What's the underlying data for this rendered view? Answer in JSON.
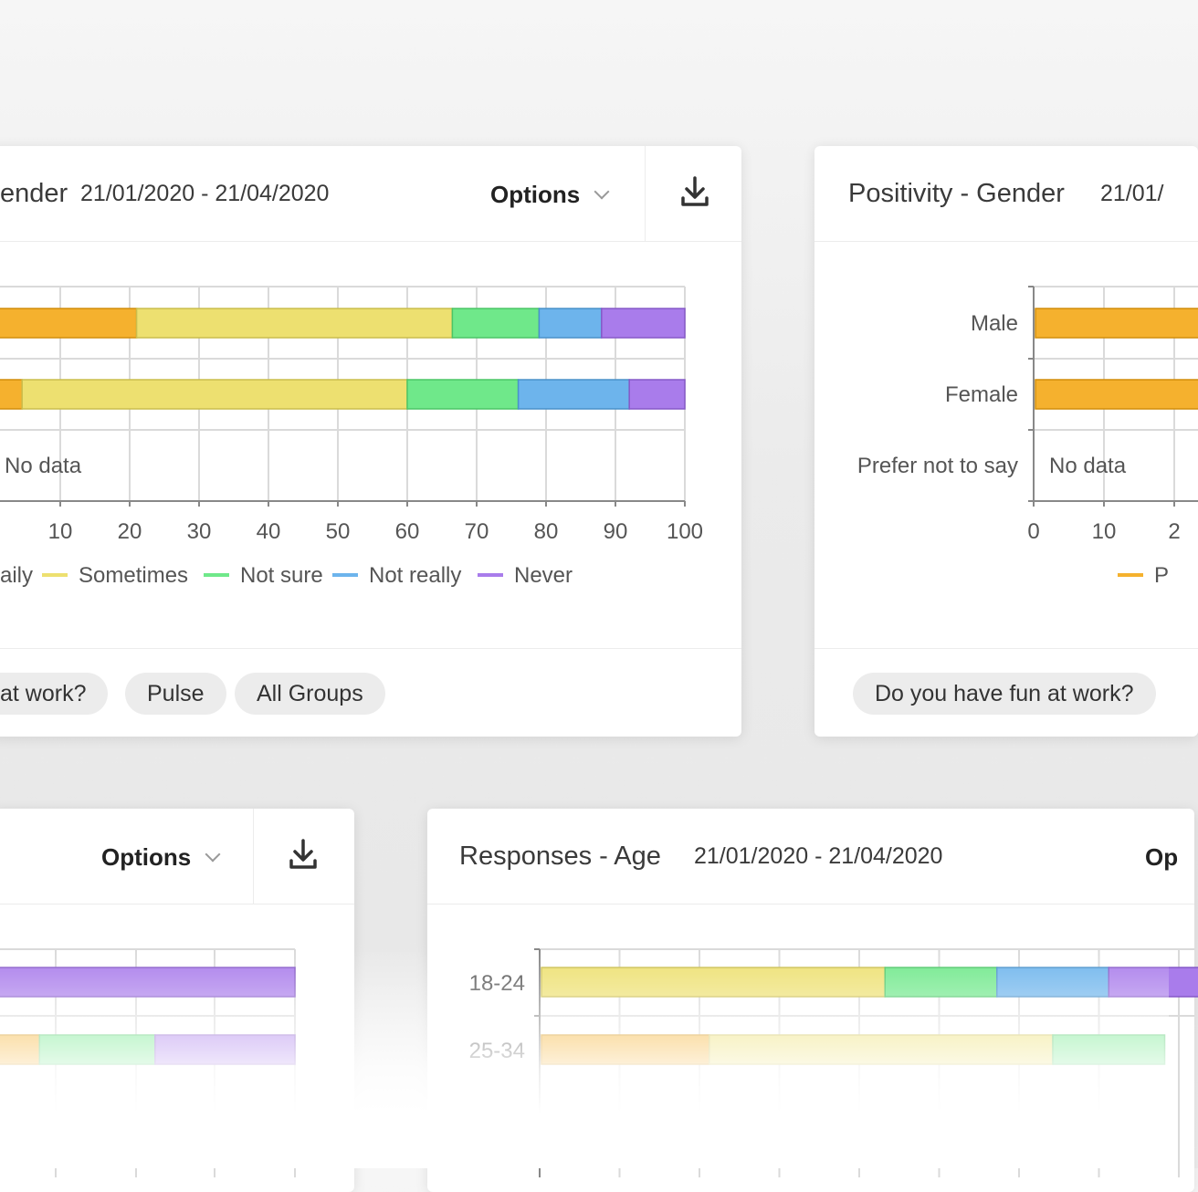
{
  "cards": {
    "gender_responses": {
      "title": "ender",
      "date": "21/01/2020 - 21/04/2020",
      "options_label": "Options",
      "chips": [
        "at work?",
        "Pulse",
        "All Groups"
      ]
    },
    "positivity_gender": {
      "title": "Positivity - Gender",
      "date": "21/01/",
      "chips": [
        "Do you have fun at work?"
      ]
    },
    "bottom_left": {
      "options_label": "Options"
    },
    "responses_age": {
      "title": "Responses - Age",
      "date": "21/01/2020 - 21/04/2020",
      "options_label": "Op"
    }
  },
  "colors": {
    "daily": "#f5b12e",
    "sometimes": "#ede070",
    "not_sure": "#6fe88a",
    "not_really": "#6db4ec",
    "never": "#a97ceb",
    "positive": "#f5b12e"
  },
  "chart_data": [
    {
      "type": "bar",
      "orientation": "horizontal",
      "stacked": true,
      "categories": [
        "",
        "",
        ""
      ],
      "series": [
        {
          "name": "aily",
          "values": [
            21,
            4.5,
            0
          ]
        },
        {
          "name": "Sometimes",
          "values": [
            45.5,
            55.5,
            0
          ]
        },
        {
          "name": "Not sure",
          "values": [
            12.5,
            16,
            0
          ]
        },
        {
          "name": "Not really",
          "values": [
            9,
            16,
            0
          ]
        },
        {
          "name": "Never",
          "values": [
            12,
            8,
            0
          ]
        }
      ],
      "no_data_label": "No data",
      "xlim": [
        0,
        100
      ],
      "x_ticks": [
        "10",
        "20",
        "30",
        "40",
        "50",
        "60",
        "70",
        "80",
        "90",
        "100"
      ],
      "grid": true,
      "legend_position": "bottom"
    },
    {
      "type": "bar",
      "orientation": "horizontal",
      "categories": [
        "Male",
        "Female",
        "Prefer not to say"
      ],
      "series": [
        {
          "name": "P",
          "values": [
            25,
            25,
            null
          ]
        }
      ],
      "no_data_label": "No data",
      "x_ticks": [
        "0",
        "10",
        "2"
      ],
      "grid": true,
      "legend_position": "bottom"
    },
    {
      "type": "bar",
      "orientation": "horizontal",
      "stacked": true,
      "categories": [
        "",
        ""
      ],
      "series": [
        {
          "name": "",
          "values": [
            0,
            16
          ]
        },
        {
          "name": "",
          "values": [
            100,
            0
          ]
        },
        {
          "name": "",
          "values": [
            0,
            38
          ]
        },
        {
          "name": "",
          "values": [
            0,
            46
          ]
        }
      ],
      "grid": true
    },
    {
      "type": "bar",
      "orientation": "horizontal",
      "stacked": true,
      "categories": [
        "18-24",
        "25-34"
      ],
      "series": [
        {
          "name": "",
          "values": [
            0,
            21
          ]
        },
        {
          "name": "",
          "values": [
            43,
            43
          ]
        },
        {
          "name": "",
          "values": [
            14,
            14
          ]
        },
        {
          "name": "",
          "values": [
            14,
            0
          ]
        },
        {
          "name": "",
          "values": [
            14,
            0
          ]
        }
      ],
      "grid": true
    }
  ]
}
